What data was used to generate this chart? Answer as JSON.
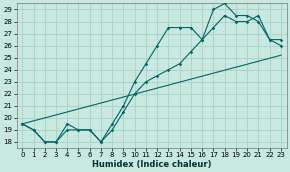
{
  "title": "",
  "xlabel": "Humidex (Indice chaleur)",
  "ylabel": "",
  "bg_color": "#c8e8e0",
  "grid_color": "#aad4cc",
  "line_color": "#006666",
  "xlim": [
    -0.5,
    23.5
  ],
  "ylim": [
    17.5,
    29.5
  ],
  "xticks": [
    0,
    1,
    2,
    3,
    4,
    5,
    6,
    7,
    8,
    9,
    10,
    11,
    12,
    13,
    14,
    15,
    16,
    17,
    18,
    19,
    20,
    21,
    22,
    23
  ],
  "yticks": [
    18,
    19,
    20,
    21,
    22,
    23,
    24,
    25,
    26,
    27,
    28,
    29
  ],
  "line1_y": [
    19.5,
    19.0,
    18.0,
    18.0,
    19.5,
    19.0,
    19.0,
    18.0,
    19.5,
    21.0,
    23.0,
    24.5,
    26.0,
    27.5,
    27.5,
    27.5,
    26.5,
    29.0,
    29.5,
    28.5,
    28.5,
    28.0,
    26.5,
    26.5
  ],
  "line2_y": [
    19.5,
    19.0,
    18.0,
    18.0,
    19.0,
    19.0,
    19.0,
    18.0,
    19.0,
    20.5,
    22.0,
    23.0,
    23.5,
    24.0,
    24.5,
    25.5,
    26.5,
    27.5,
    28.5,
    28.0,
    28.0,
    28.5,
    26.5,
    26.0
  ],
  "line3_x": [
    0,
    23
  ],
  "line3_y": [
    19.5,
    25.2
  ],
  "xlabel_fontsize": 6,
  "tick_fontsize": 5
}
